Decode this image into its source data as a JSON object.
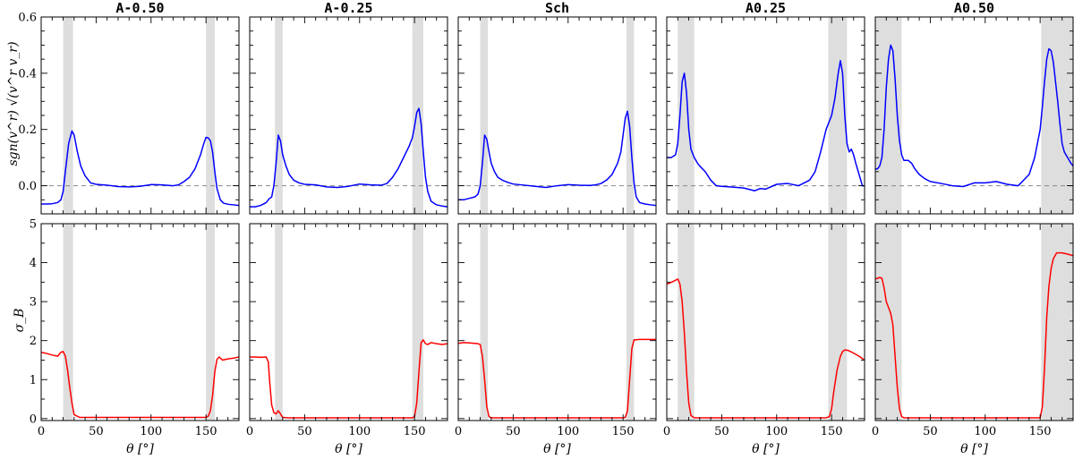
{
  "chart_data": {
    "type": "line",
    "layout": "2 rows x 5 columns, shared x axis per column, shared y axis per row",
    "xlabel": "θ [°]",
    "xlim": [
      0,
      180
    ],
    "xticks": [
      0,
      50,
      100,
      150
    ],
    "rows": [
      {
        "ylabel": "sgn(v^r) √(v^r v_r)",
        "ylim": [
          -0.1,
          0.6
        ],
        "yticks": [
          "0.0",
          "0.2",
          "0.4",
          "0.6"
        ],
        "ytick_values": [
          0,
          0.2,
          0.4,
          0.6
        ],
        "color": "#0000ff",
        "zero_line": true
      },
      {
        "ylabel": "σ_B",
        "ylim": [
          -0.05,
          5
        ],
        "yticks": [
          "0",
          "1",
          "2",
          "3",
          "4",
          "5"
        ],
        "ytick_values": [
          0,
          1,
          2,
          3,
          4,
          5
        ],
        "color": "#ff0000",
        "zero_line": false
      }
    ],
    "panels": [
      {
        "title": "A-0.50",
        "bands": [
          [
            20,
            29
          ],
          [
            150,
            158
          ]
        ],
        "velocity": {
          "x": [
            0,
            5,
            10,
            15,
            18,
            20,
            22,
            25,
            28,
            30,
            33,
            36,
            40,
            45,
            50,
            60,
            70,
            80,
            90,
            100,
            110,
            120,
            125,
            130,
            135,
            140,
            145,
            148,
            150,
            152,
            154,
            156,
            158,
            160,
            163,
            166,
            170,
            175,
            180
          ],
          "y": [
            -0.065,
            -0.065,
            -0.064,
            -0.06,
            -0.05,
            -0.02,
            0.05,
            0.15,
            0.195,
            0.18,
            0.12,
            0.07,
            0.035,
            0.01,
            0.005,
            0.002,
            -0.003,
            -0.004,
            -0.002,
            0.004,
            0.003,
            0.0,
            0.003,
            0.015,
            0.03,
            0.06,
            0.11,
            0.15,
            0.172,
            0.17,
            0.16,
            0.12,
            0.05,
            -0.01,
            -0.05,
            -0.062,
            -0.066,
            -0.068,
            -0.07
          ]
        },
        "sigma": {
          "x": [
            0,
            5,
            10,
            15,
            18,
            20,
            22,
            24,
            26,
            28,
            30,
            35,
            50,
            100,
            150,
            152,
            154,
            156,
            158,
            160,
            162,
            165,
            170,
            175,
            180
          ],
          "y": [
            1.7,
            1.67,
            1.63,
            1.6,
            1.7,
            1.72,
            1.6,
            1.25,
            0.8,
            0.4,
            0.1,
            0.03,
            0.03,
            0.03,
            0.03,
            0.06,
            0.2,
            0.6,
            1.2,
            1.52,
            1.58,
            1.5,
            1.53,
            1.55,
            1.58
          ]
        }
      },
      {
        "title": "A-0.25",
        "bands": [
          [
            23,
            30
          ],
          [
            148,
            158
          ]
        ],
        "velocity": {
          "x": [
            0,
            5,
            10,
            15,
            18,
            20,
            22,
            24,
            26,
            28,
            30,
            33,
            36,
            40,
            45,
            50,
            60,
            70,
            80,
            90,
            100,
            110,
            120,
            125,
            130,
            135,
            140,
            145,
            148,
            150,
            152,
            154,
            156,
            158,
            160,
            162,
            165,
            170,
            175,
            180
          ],
          "y": [
            -0.075,
            -0.075,
            -0.07,
            -0.06,
            -0.045,
            -0.04,
            0.0,
            0.08,
            0.18,
            0.16,
            0.11,
            0.07,
            0.04,
            0.02,
            0.01,
            0.005,
            0.003,
            -0.004,
            -0.006,
            -0.002,
            0.006,
            0.003,
            0.002,
            0.008,
            0.03,
            0.06,
            0.1,
            0.14,
            0.17,
            0.21,
            0.26,
            0.275,
            0.22,
            0.12,
            0.03,
            -0.02,
            -0.055,
            -0.068,
            -0.072,
            -0.075
          ]
        },
        "sigma": {
          "x": [
            0,
            5,
            10,
            15,
            17,
            18,
            20,
            22,
            24,
            26,
            28,
            30,
            35,
            50,
            100,
            148,
            150,
            152,
            154,
            156,
            158,
            160,
            162,
            165,
            170,
            175,
            180
          ],
          "y": [
            1.58,
            1.58,
            1.57,
            1.58,
            1.45,
            1.0,
            0.35,
            0.15,
            0.12,
            0.2,
            0.12,
            0.03,
            0.02,
            0.02,
            0.02,
            0.02,
            0.05,
            0.4,
            1.2,
            1.95,
            2.02,
            1.92,
            1.9,
            1.95,
            1.92,
            1.9,
            1.92
          ]
        }
      },
      {
        "title": "Sch",
        "bands": [
          [
            20,
            27
          ],
          [
            153,
            160
          ]
        ],
        "velocity": {
          "x": [
            0,
            5,
            10,
            15,
            18,
            20,
            22,
            24,
            26,
            28,
            30,
            33,
            36,
            40,
            45,
            50,
            60,
            70,
            80,
            90,
            100,
            110,
            120,
            125,
            130,
            135,
            140,
            145,
            148,
            150,
            152,
            154,
            156,
            158,
            160,
            162,
            165,
            170,
            175,
            180
          ],
          "y": [
            -0.05,
            -0.05,
            -0.045,
            -0.04,
            -0.03,
            0.0,
            0.08,
            0.18,
            0.165,
            0.12,
            0.08,
            0.05,
            0.03,
            0.02,
            0.012,
            0.006,
            0.002,
            -0.002,
            -0.006,
            0.0,
            0.004,
            0.002,
            0.001,
            0.003,
            0.008,
            0.02,
            0.04,
            0.08,
            0.12,
            0.18,
            0.24,
            0.265,
            0.21,
            0.1,
            0.01,
            -0.04,
            -0.06,
            -0.065,
            -0.068,
            -0.07
          ]
        },
        "sigma": {
          "x": [
            0,
            5,
            10,
            15,
            18,
            20,
            22,
            24,
            26,
            28,
            30,
            35,
            50,
            100,
            150,
            152,
            154,
            156,
            158,
            160,
            165,
            170,
            175,
            180
          ],
          "y": [
            1.93,
            1.95,
            1.94,
            1.93,
            1.92,
            1.9,
            1.6,
            1.0,
            0.3,
            0.05,
            0.02,
            0.02,
            0.02,
            0.02,
            0.02,
            0.03,
            0.2,
            1.0,
            1.8,
            2.02,
            2.03,
            2.03,
            2.03,
            2.03
          ]
        }
      },
      {
        "title": "A0.25",
        "bands": [
          [
            10,
            25
          ],
          [
            147,
            164
          ]
        ],
        "velocity": {
          "x": [
            0,
            4,
            8,
            10,
            12,
            14,
            16,
            18,
            20,
            22,
            25,
            28,
            30,
            35,
            40,
            45,
            50,
            60,
            70,
            80,
            85,
            90,
            100,
            110,
            120,
            130,
            135,
            140,
            145,
            150,
            153,
            156,
            158,
            160,
            162,
            164,
            166,
            168,
            170,
            172,
            175,
            178,
            180
          ],
          "y": [
            0.1,
            0.1,
            0.11,
            0.15,
            0.25,
            0.37,
            0.4,
            0.33,
            0.2,
            0.13,
            0.1,
            0.08,
            0.07,
            0.05,
            0.02,
            0.0,
            -0.002,
            -0.005,
            -0.008,
            -0.018,
            -0.01,
            -0.012,
            0.005,
            0.008,
            0.0,
            0.02,
            0.05,
            0.12,
            0.2,
            0.25,
            0.31,
            0.4,
            0.445,
            0.4,
            0.25,
            0.15,
            0.12,
            0.13,
            0.11,
            0.08,
            0.04,
            0.0,
            0.0
          ]
        },
        "sigma": {
          "x": [
            0,
            3,
            6,
            8,
            10,
            12,
            14,
            16,
            18,
            20,
            22,
            25,
            28,
            30,
            50,
            100,
            145,
            148,
            150,
            152,
            155,
            158,
            160,
            162,
            165,
            170,
            175,
            180
          ],
          "y": [
            3.45,
            3.48,
            3.52,
            3.55,
            3.58,
            3.45,
            3.0,
            2.2,
            1.2,
            0.4,
            0.08,
            0.02,
            0.02,
            0.02,
            0.02,
            0.02,
            0.02,
            0.05,
            0.25,
            0.7,
            1.25,
            1.6,
            1.72,
            1.76,
            1.75,
            1.68,
            1.6,
            1.5
          ]
        }
      },
      {
        "title": "A0.50",
        "bands": [
          [
            0,
            24
          ],
          [
            151,
            180
          ]
        ],
        "velocity": {
          "x": [
            0,
            2,
            4,
            6,
            8,
            10,
            12,
            14,
            16,
            18,
            20,
            22,
            24,
            26,
            28,
            30,
            33,
            36,
            40,
            45,
            50,
            60,
            70,
            80,
            90,
            100,
            110,
            120,
            130,
            140,
            145,
            150,
            152,
            154,
            156,
            158,
            160,
            162,
            164,
            166,
            168,
            170,
            172,
            175,
            178,
            180
          ],
          "y": [
            0.06,
            0.06,
            0.07,
            0.1,
            0.2,
            0.35,
            0.45,
            0.5,
            0.48,
            0.38,
            0.25,
            0.16,
            0.11,
            0.09,
            0.09,
            0.09,
            0.08,
            0.06,
            0.04,
            0.025,
            0.015,
            0.008,
            0.0,
            -0.003,
            0.01,
            0.01,
            0.015,
            0.005,
            0.0,
            0.04,
            0.1,
            0.2,
            0.28,
            0.37,
            0.45,
            0.487,
            0.48,
            0.44,
            0.37,
            0.3,
            0.22,
            0.15,
            0.12,
            0.1,
            0.08,
            0.07
          ]
        },
        "sigma": {
          "x": [
            0,
            2,
            4,
            6,
            8,
            10,
            12,
            14,
            16,
            18,
            20,
            22,
            24,
            26,
            30,
            50,
            100,
            150,
            152,
            154,
            156,
            158,
            160,
            162,
            165,
            170,
            175,
            180
          ],
          "y": [
            3.58,
            3.6,
            3.62,
            3.6,
            3.35,
            3.0,
            2.85,
            2.7,
            2.4,
            1.6,
            0.8,
            0.25,
            0.05,
            0.02,
            0.02,
            0.02,
            0.02,
            0.02,
            0.3,
            1.3,
            2.6,
            3.4,
            3.85,
            4.1,
            4.25,
            4.25,
            4.22,
            4.18
          ]
        }
      }
    ]
  }
}
